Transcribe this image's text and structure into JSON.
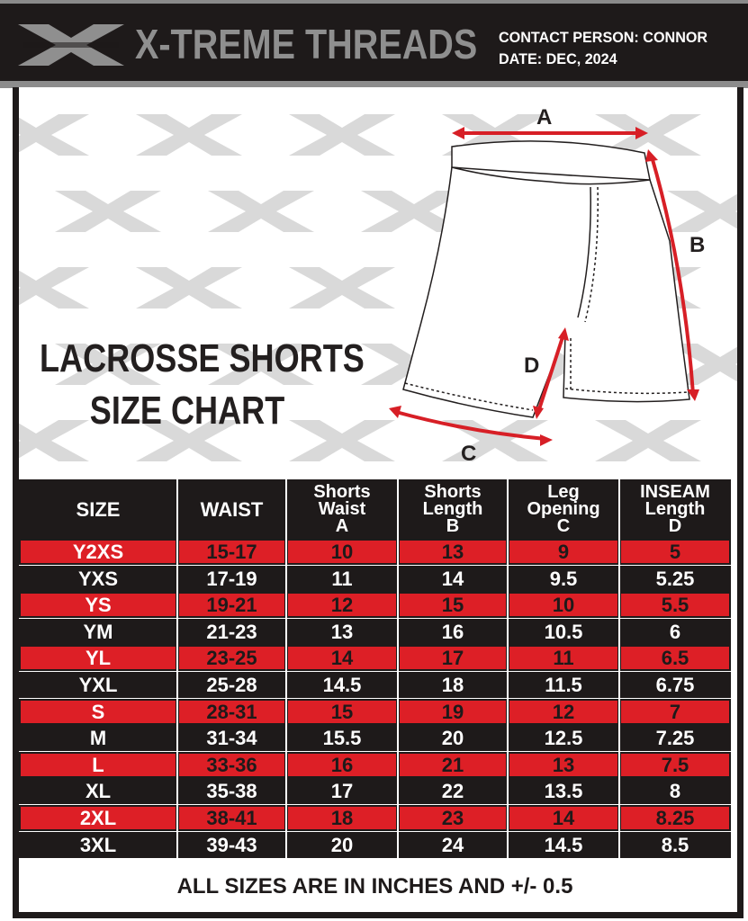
{
  "header": {
    "brand": "X-TREME THREADS",
    "contact_line": "CONTACT PERSON: CONNOR",
    "date_line": "DATE: DEC, 2024"
  },
  "title": {
    "line1": "LACROSSE SHORTS",
    "line2": "SIZE CHART"
  },
  "diagram": {
    "label_a": "A",
    "label_b": "B",
    "label_c": "C",
    "label_d": "D"
  },
  "table": {
    "headers": [
      {
        "line1": "SIZE",
        "line2": "",
        "line3": ""
      },
      {
        "line1": "WAIST",
        "line2": "",
        "line3": ""
      },
      {
        "line1": "Shorts",
        "line2": "Waist",
        "line3": "A"
      },
      {
        "line1": "Shorts",
        "line2": "Length",
        "line3": "B"
      },
      {
        "line1": "Leg",
        "line2": "Opening",
        "line3": "C"
      },
      {
        "line1": "INSEAM",
        "line2": "Length",
        "line3": "D"
      }
    ],
    "rows": [
      [
        "Y2XS",
        "15-17",
        "10",
        "13",
        "9",
        "5"
      ],
      [
        "YXS",
        "17-19",
        "11",
        "14",
        "9.5",
        "5.25"
      ],
      [
        "YS",
        "19-21",
        "12",
        "15",
        "10",
        "5.5"
      ],
      [
        "YM",
        "21-23",
        "13",
        "16",
        "10.5",
        "6"
      ],
      [
        "YL",
        "23-25",
        "14",
        "17",
        "11",
        "6.5"
      ],
      [
        "YXL",
        "25-28",
        "14.5",
        "18",
        "11.5",
        "6.75"
      ],
      [
        "S",
        "28-31",
        "15",
        "19",
        "12",
        "7"
      ],
      [
        "M",
        "31-34",
        "15.5",
        "20",
        "12.5",
        "7.25"
      ],
      [
        "L",
        "33-36",
        "16",
        "21",
        "13",
        "7.5"
      ],
      [
        "XL",
        "35-38",
        "17",
        "22",
        "13.5",
        "8"
      ],
      [
        "2XL",
        "38-41",
        "18",
        "23",
        "14",
        "8.25"
      ],
      [
        "3XL",
        "39-43",
        "20",
        "24",
        "14.5",
        "8.5"
      ]
    ]
  },
  "footer": {
    "note": "ALL SIZES ARE IN INCHES AND +/- 0.5"
  },
  "colors": {
    "dark": "#1e1a1a",
    "red": "#dd1f26",
    "size_text_on_red": "#ffffff",
    "grey": "#8f8f8f",
    "arrow": "#d71f26"
  }
}
